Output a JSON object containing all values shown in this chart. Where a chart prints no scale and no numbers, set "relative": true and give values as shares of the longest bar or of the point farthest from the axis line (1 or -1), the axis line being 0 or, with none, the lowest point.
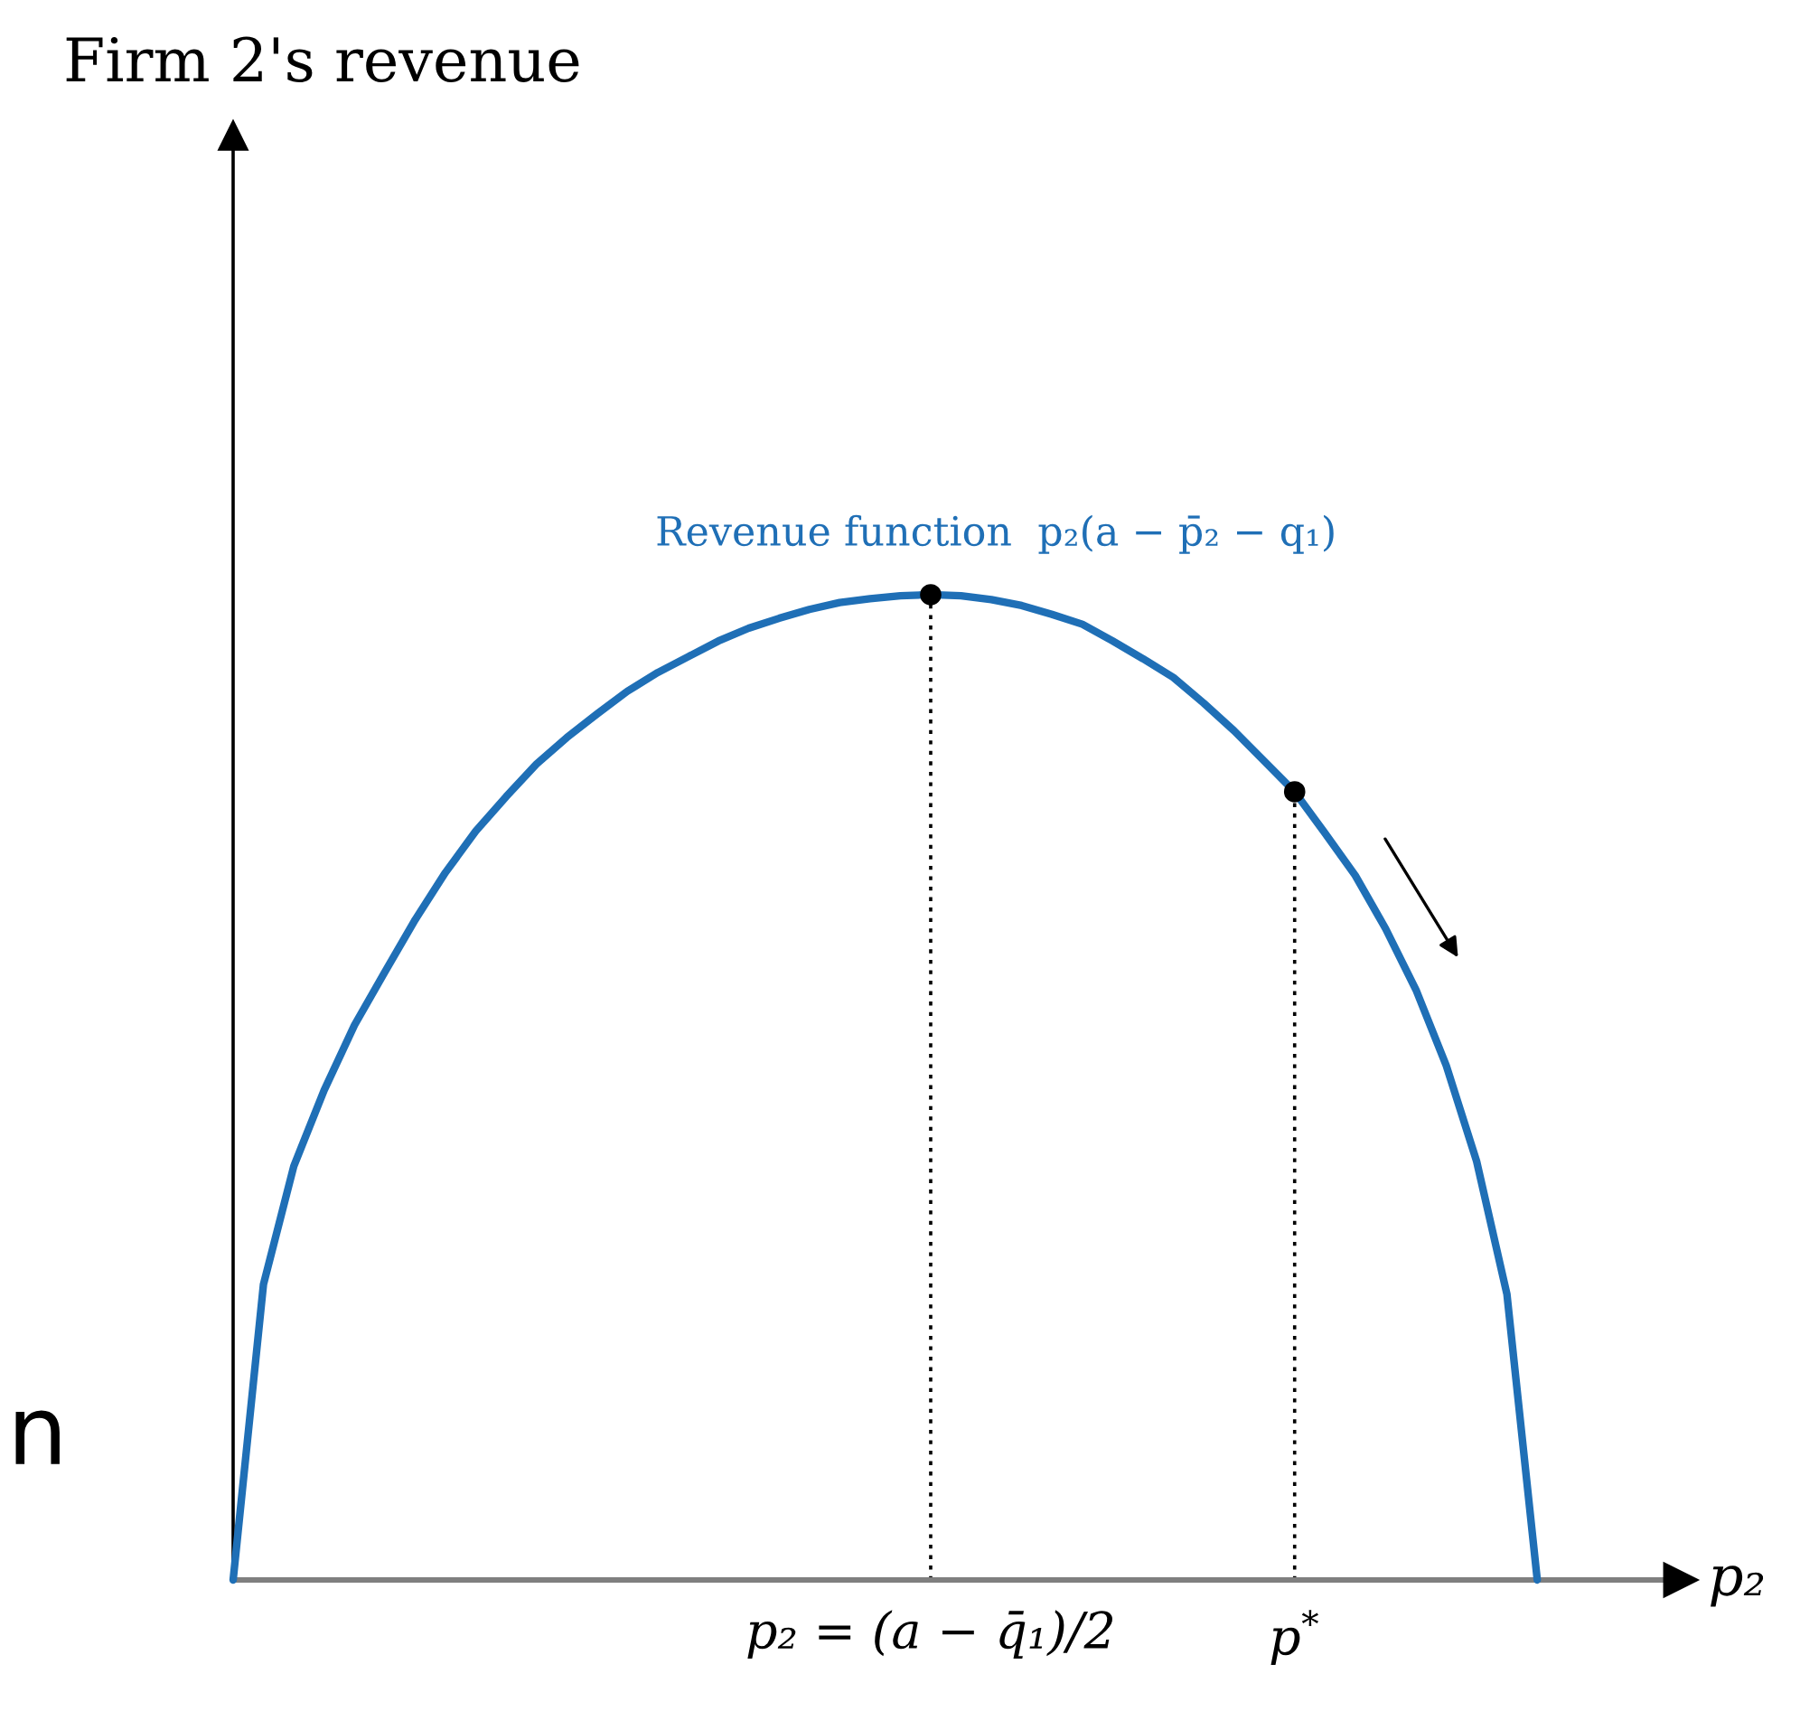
{
  "chart_data": {
    "type": "line",
    "relative": true,
    "xlabel": "p₂",
    "categories": [
      null,
      null,
      null,
      null,
      null,
      null,
      null,
      null,
      null,
      null,
      null,
      null,
      null,
      null,
      null,
      null,
      null,
      null,
      null,
      null,
      null,
      null,
      null,
      "p₂ = (a − q̄₁)/2",
      null,
      null,
      null,
      null,
      null,
      null,
      null,
      null,
      null,
      null,
      null,
      "p$^{*}$",
      null,
      null,
      null,
      null,
      null,
      null,
      null,
      null
    ],
    "series": [
      {
        "name": "Revenue function  p₂(a − p̄₂ − q₁)",
        "color": "#1f6fb6",
        "values": [
          0,
          0.3,
          0.42,
          0.497,
          0.563,
          0.617,
          0.67,
          0.718,
          0.76,
          0.795,
          0.828,
          0.855,
          0.879,
          0.902,
          0.921,
          0.937,
          0.953,
          0.966,
          0.976,
          0.985,
          0.992,
          0.996,
          0.999,
          1,
          0.999,
          0.995,
          0.989,
          0.98,
          0.97,
          0.953,
          0.935,
          0.916,
          0.89,
          0.862,
          0.831,
          0.8,
          0.758,
          0.715,
          0.661,
          0.599,
          0.522,
          0.425,
          0.29,
          0
        ]
      },
      {
        "type": "lollipop",
        "color": "#000000",
        "line_style": "dotted",
        "marker": "circle",
        "values": [
          null,
          null,
          null,
          null,
          null,
          null,
          null,
          null,
          null,
          null,
          null,
          null,
          null,
          null,
          null,
          null,
          null,
          null,
          null,
          null,
          null,
          null,
          null,
          1,
          null,
          null,
          null,
          null,
          null,
          null,
          null,
          null,
          null,
          null,
          null,
          0.8,
          null,
          null,
          null,
          null,
          null,
          null,
          null,
          null
        ]
      }
    ],
    "annotations": [
      "Firm 2's revenue",
      "n"
    ]
  }
}
